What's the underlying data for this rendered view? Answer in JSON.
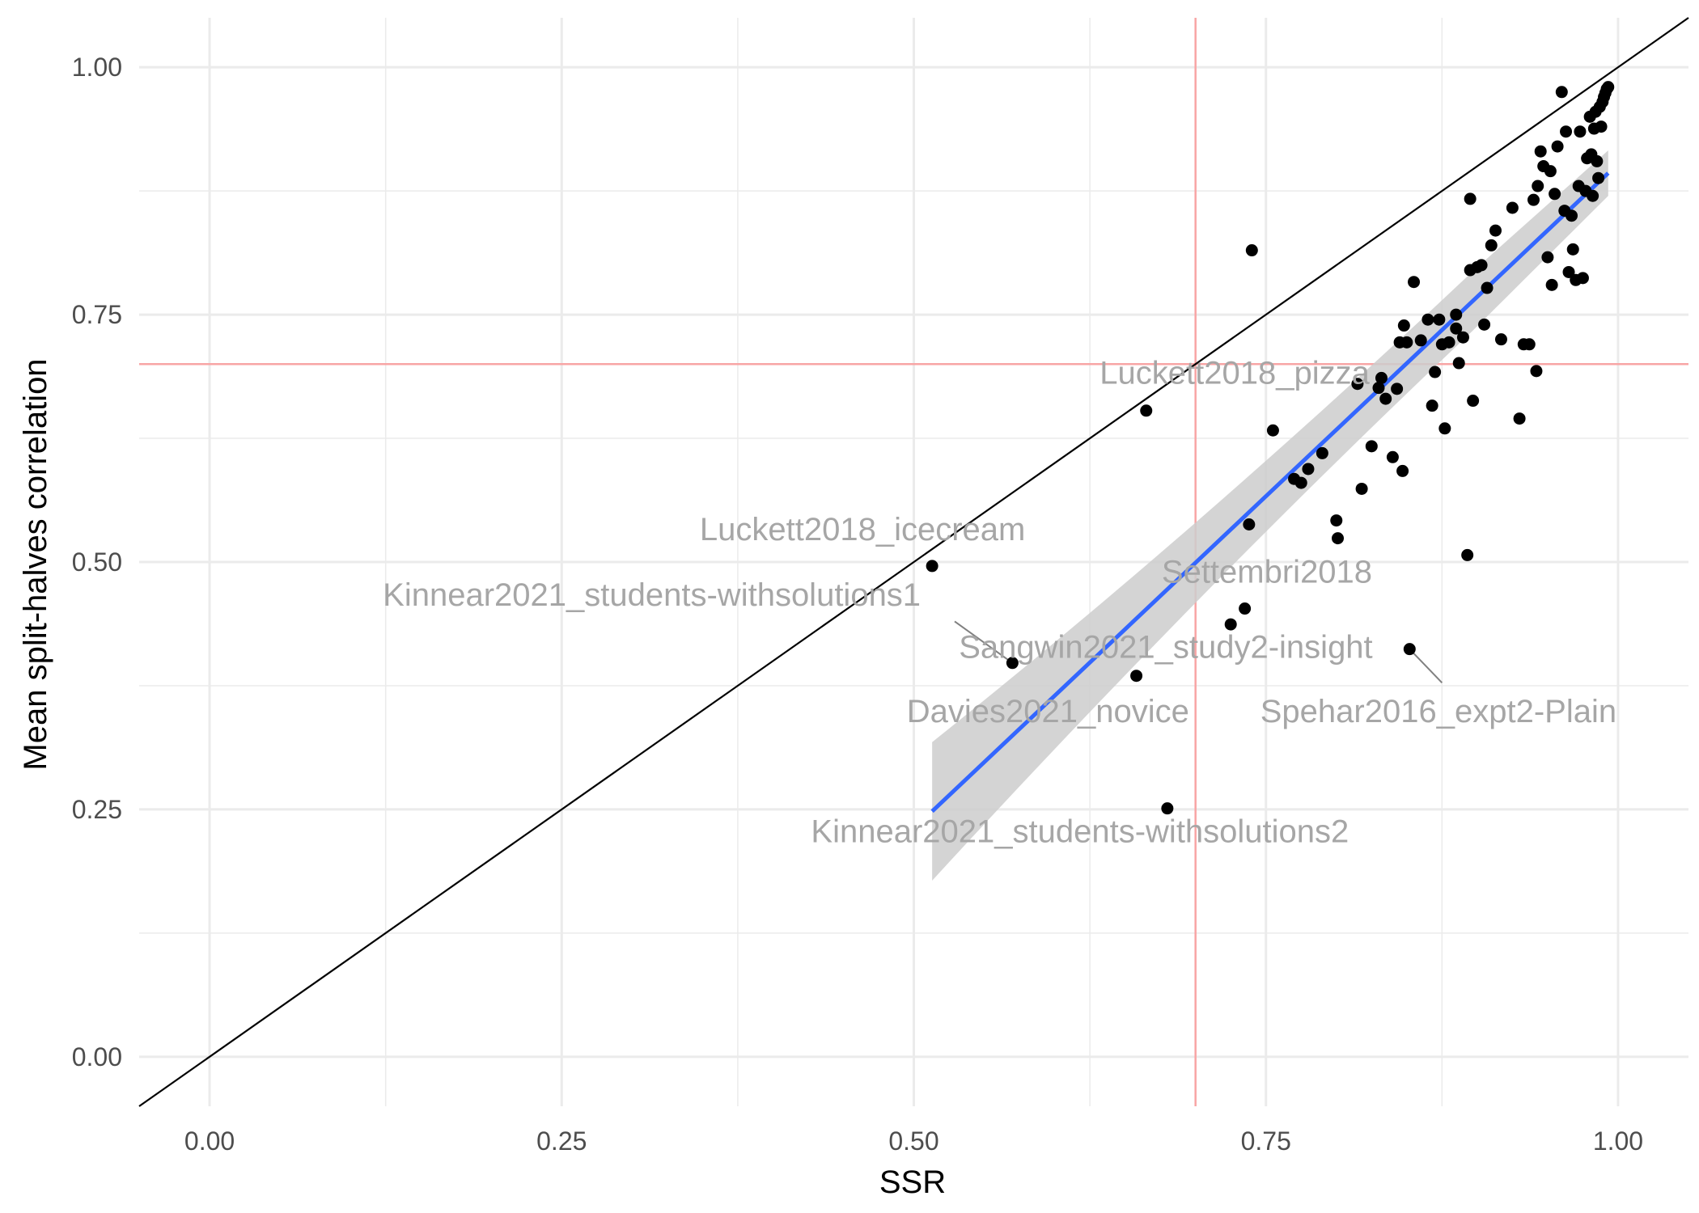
{
  "chart_data": {
    "type": "scatter",
    "xlabel": "SSR",
    "ylabel": "Mean split-halves correlation",
    "xlim": [
      -0.05,
      1.05
    ],
    "ylim": [
      -0.05,
      1.05
    ],
    "x_ticks": [
      0.0,
      0.25,
      0.5,
      0.75,
      1.0
    ],
    "x_tick_labels": [
      "0.00",
      "0.25",
      "0.50",
      "0.75",
      "1.00"
    ],
    "y_ticks": [
      0.0,
      0.25,
      0.5,
      0.75,
      1.0
    ],
    "y_tick_labels": [
      "0.00",
      "0.25",
      "0.50",
      "0.75",
      "1.00"
    ],
    "grid": true,
    "colors": {
      "points": "#000000",
      "fit_line": "#3366ff",
      "ci_band": "#cccccc",
      "reference_lines": "#f8a5a5",
      "identity_line": "#000000",
      "grid": "#ebebeb",
      "annotation_text": "#a6a6a6",
      "annotation_segment": "#808080"
    },
    "identity_line": {
      "slope": 1,
      "intercept": 0
    },
    "reference_lines": {
      "x": 0.7,
      "y": 0.7
    },
    "fit": {
      "method": "linear",
      "x_range": [
        0.513,
        0.993
      ],
      "y_range": [
        0.248,
        0.893
      ],
      "ci_half_width_ends": [
        0.07,
        0.023
      ],
      "ci_half_width_mid": 0.03
    },
    "points": [
      {
        "x": 0.513,
        "y": 0.496
      },
      {
        "x": 0.57,
        "y": 0.398
      },
      {
        "x": 0.658,
        "y": 0.385
      },
      {
        "x": 0.665,
        "y": 0.653
      },
      {
        "x": 0.68,
        "y": 0.251
      },
      {
        "x": 0.725,
        "y": 0.437
      },
      {
        "x": 0.735,
        "y": 0.453
      },
      {
        "x": 0.738,
        "y": 0.538
      },
      {
        "x": 0.74,
        "y": 0.815
      },
      {
        "x": 0.755,
        "y": 0.633
      },
      {
        "x": 0.77,
        "y": 0.584
      },
      {
        "x": 0.775,
        "y": 0.58
      },
      {
        "x": 0.78,
        "y": 0.594
      },
      {
        "x": 0.79,
        "y": 0.61
      },
      {
        "x": 0.8,
        "y": 0.542
      },
      {
        "x": 0.801,
        "y": 0.524
      },
      {
        "x": 0.815,
        "y": 0.68
      },
      {
        "x": 0.818,
        "y": 0.574
      },
      {
        "x": 0.825,
        "y": 0.617
      },
      {
        "x": 0.83,
        "y": 0.676
      },
      {
        "x": 0.832,
        "y": 0.686
      },
      {
        "x": 0.835,
        "y": 0.665
      },
      {
        "x": 0.84,
        "y": 0.606
      },
      {
        "x": 0.843,
        "y": 0.675
      },
      {
        "x": 0.845,
        "y": 0.722
      },
      {
        "x": 0.847,
        "y": 0.592
      },
      {
        "x": 0.848,
        "y": 0.739
      },
      {
        "x": 0.85,
        "y": 0.722
      },
      {
        "x": 0.852,
        "y": 0.412
      },
      {
        "x": 0.855,
        "y": 0.783
      },
      {
        "x": 0.86,
        "y": 0.724
      },
      {
        "x": 0.865,
        "y": 0.745
      },
      {
        "x": 0.868,
        "y": 0.658
      },
      {
        "x": 0.87,
        "y": 0.692
      },
      {
        "x": 0.873,
        "y": 0.745
      },
      {
        "x": 0.875,
        "y": 0.72
      },
      {
        "x": 0.877,
        "y": 0.635
      },
      {
        "x": 0.88,
        "y": 0.722
      },
      {
        "x": 0.885,
        "y": 0.736
      },
      {
        "x": 0.885,
        "y": 0.75
      },
      {
        "x": 0.887,
        "y": 0.701
      },
      {
        "x": 0.89,
        "y": 0.727
      },
      {
        "x": 0.893,
        "y": 0.507
      },
      {
        "x": 0.895,
        "y": 0.867
      },
      {
        "x": 0.897,
        "y": 0.663
      },
      {
        "x": 0.895,
        "y": 0.795
      },
      {
        "x": 0.9,
        "y": 0.798
      },
      {
        "x": 0.903,
        "y": 0.8
      },
      {
        "x": 0.905,
        "y": 0.74
      },
      {
        "x": 0.907,
        "y": 0.777
      },
      {
        "x": 0.91,
        "y": 0.82
      },
      {
        "x": 0.913,
        "y": 0.835
      },
      {
        "x": 0.917,
        "y": 0.725
      },
      {
        "x": 0.925,
        "y": 0.858
      },
      {
        "x": 0.93,
        "y": 0.645
      },
      {
        "x": 0.933,
        "y": 0.72
      },
      {
        "x": 0.937,
        "y": 0.72
      },
      {
        "x": 0.94,
        "y": 0.866
      },
      {
        "x": 0.942,
        "y": 0.693
      },
      {
        "x": 0.943,
        "y": 0.88
      },
      {
        "x": 0.945,
        "y": 0.915
      },
      {
        "x": 0.947,
        "y": 0.9
      },
      {
        "x": 0.95,
        "y": 0.808
      },
      {
        "x": 0.952,
        "y": 0.895
      },
      {
        "x": 0.953,
        "y": 0.78
      },
      {
        "x": 0.955,
        "y": 0.872
      },
      {
        "x": 0.957,
        "y": 0.92
      },
      {
        "x": 0.96,
        "y": 0.975
      },
      {
        "x": 0.962,
        "y": 0.855
      },
      {
        "x": 0.963,
        "y": 0.935
      },
      {
        "x": 0.965,
        "y": 0.793
      },
      {
        "x": 0.967,
        "y": 0.85
      },
      {
        "x": 0.968,
        "y": 0.816
      },
      {
        "x": 0.97,
        "y": 0.785
      },
      {
        "x": 0.972,
        "y": 0.88
      },
      {
        "x": 0.973,
        "y": 0.935
      },
      {
        "x": 0.975,
        "y": 0.787
      },
      {
        "x": 0.977,
        "y": 0.875
      },
      {
        "x": 0.978,
        "y": 0.908
      },
      {
        "x": 0.98,
        "y": 0.95
      },
      {
        "x": 0.981,
        "y": 0.912
      },
      {
        "x": 0.982,
        "y": 0.87
      },
      {
        "x": 0.983,
        "y": 0.938
      },
      {
        "x": 0.984,
        "y": 0.955
      },
      {
        "x": 0.985,
        "y": 0.905
      },
      {
        "x": 0.986,
        "y": 0.888
      },
      {
        "x": 0.987,
        "y": 0.96
      },
      {
        "x": 0.988,
        "y": 0.94
      },
      {
        "x": 0.989,
        "y": 0.965
      },
      {
        "x": 0.99,
        "y": 0.97
      },
      {
        "x": 0.991,
        "y": 0.974
      },
      {
        "x": 0.992,
        "y": 0.978
      },
      {
        "x": 0.993,
        "y": 0.98
      }
    ],
    "annotations": [
      {
        "text": "Luckett2018_pizza",
        "x": 0.632,
        "y": 0.68
      },
      {
        "text": "Luckett2018_icecream",
        "x": 0.348,
        "y": 0.522
      },
      {
        "text": "Kinnear2021_students-withsolutions1",
        "x": 0.123,
        "y": 0.456
      },
      {
        "text": "Settembri2018",
        "x": 0.676,
        "y": 0.479
      },
      {
        "text": "Sangwin2021_study2-insight",
        "x": 0.532,
        "y": 0.403
      },
      {
        "text": "Davies2021_novice",
        "x": 0.495,
        "y": 0.338
      },
      {
        "text": "Spehar2016_expt2-Plain",
        "x": 0.746,
        "y": 0.338
      },
      {
        "text": "Kinnear2021_students-withsolutions2",
        "x": 0.427,
        "y": 0.217
      }
    ],
    "annotation_segments": [
      {
        "from": [
          0.529,
          0.44
        ],
        "to": [
          0.57,
          0.398
        ]
      },
      {
        "from": [
          0.852,
          0.412
        ],
        "to": [
          0.875,
          0.378
        ]
      }
    ]
  }
}
